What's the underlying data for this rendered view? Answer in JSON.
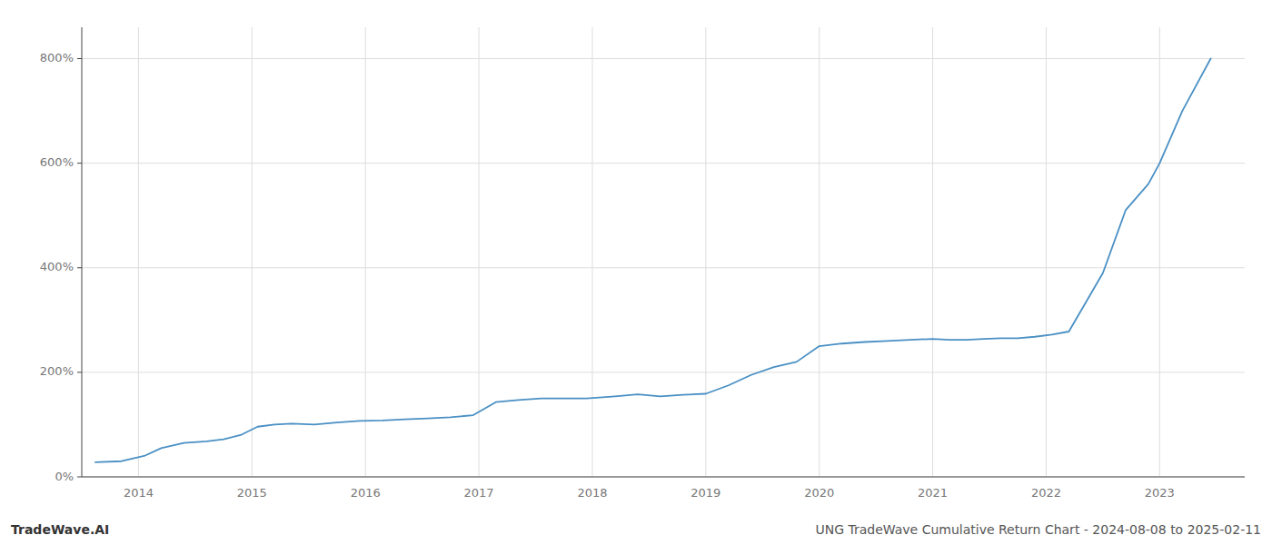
{
  "chart_data": {
    "type": "line",
    "title": "UNG TradeWave Cumulative Return Chart - 2024-08-08 to 2025-02-11",
    "annotations": [
      "TradeWave.AI"
    ],
    "x": [
      2013.62,
      2013.85,
      2014.05,
      2014.2,
      2014.4,
      2014.6,
      2014.75,
      2014.9,
      2015.05,
      2015.2,
      2015.35,
      2015.55,
      2015.75,
      2015.95,
      2016.15,
      2016.35,
      2016.55,
      2016.75,
      2016.95,
      2017.15,
      2017.35,
      2017.55,
      2017.75,
      2017.95,
      2018.2,
      2018.4,
      2018.6,
      2018.8,
      2019.0,
      2019.2,
      2019.4,
      2019.6,
      2019.8,
      2020.0,
      2020.2,
      2020.4,
      2020.6,
      2020.8,
      2021.0,
      2021.15,
      2021.3,
      2021.45,
      2021.6,
      2021.75,
      2021.9,
      2022.05,
      2022.2,
      2022.5,
      2022.7,
      2022.9,
      2023.0,
      2023.2,
      2023.45
    ],
    "values": [
      28,
      30,
      40,
      55,
      65,
      68,
      72,
      80,
      96,
      100,
      102,
      100,
      104,
      107,
      108,
      110,
      112,
      114,
      118,
      143,
      147,
      150,
      150,
      150,
      154,
      158,
      154,
      157,
      159,
      175,
      195,
      210,
      220,
      250,
      255,
      258,
      260,
      262,
      264,
      262,
      262,
      264,
      265,
      265,
      268,
      272,
      278,
      390,
      510,
      560,
      600,
      700,
      800
    ],
    "color": "#4a90c4",
    "xlim": [
      2013.5,
      2023.75
    ],
    "xticks": [
      2014,
      2015,
      2016,
      2017,
      2018,
      2019,
      2020,
      2021,
      2022,
      2023
    ],
    "ylim": [
      0,
      860
    ],
    "yticks": [
      {
        "value": 0,
        "label": "0%"
      },
      {
        "value": 200,
        "label": "200%"
      },
      {
        "value": 400,
        "label": "400%"
      },
      {
        "value": 600,
        "label": "600%"
      },
      {
        "value": 800,
        "label": "800%"
      }
    ],
    "grid": true
  }
}
